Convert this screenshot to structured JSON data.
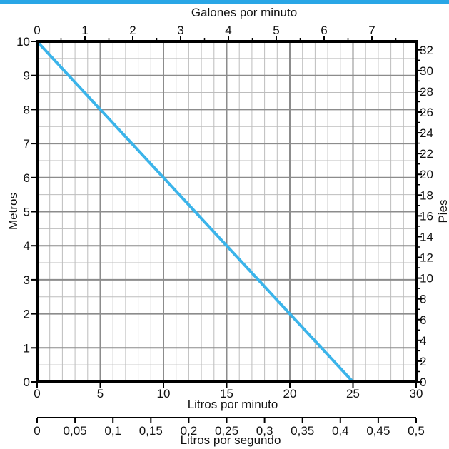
{
  "theme": {
    "accent": "#29a6e6",
    "line_color": "#3bb4ea",
    "grid_major": "#8c8c8c",
    "grid_minor": "#bdbdbd",
    "frame": "#000000"
  },
  "chart_data": {
    "type": "line",
    "series": [
      {
        "x": [
          0,
          25
        ],
        "y": [
          10,
          0
        ]
      }
    ],
    "axes": {
      "bottom": {
        "label": "Litros por minuto",
        "range": [
          0,
          30
        ],
        "ticks": [
          0,
          5,
          10,
          15,
          20,
          25,
          30
        ]
      },
      "top": {
        "label": "Galones por minuto",
        "ticks": [
          0,
          1,
          2,
          3,
          4,
          5,
          6,
          7
        ]
      },
      "left": {
        "label": "Metros",
        "range": [
          0,
          10
        ],
        "ticks": [
          0,
          1,
          2,
          3,
          4,
          5,
          6,
          7,
          8,
          9,
          10
        ]
      },
      "right": {
        "label": "Pies",
        "ticks": [
          0,
          2,
          4,
          6,
          8,
          10,
          12,
          14,
          16,
          18,
          20,
          22,
          24,
          26,
          28,
          30,
          32
        ]
      },
      "extra_bottom": {
        "label": "Litros por segundo",
        "range": [
          0,
          0.5
        ],
        "tick_labels": [
          "0",
          "0,05",
          "0,1",
          "0,15",
          "0,2",
          "0,25",
          "0,3",
          "0,35",
          "0,4",
          "0,45",
          "0,5"
        ]
      }
    },
    "grid": true
  }
}
